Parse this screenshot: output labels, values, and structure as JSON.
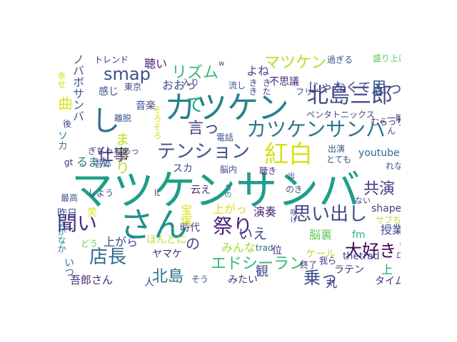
{
  "words": [
    {
      "text": "マツケンサンバ",
      "color": "#1f9e89",
      "vertical": false
    },
    {
      "text": "さん",
      "color": "#21918c",
      "vertical": false
    },
    {
      "text": "カツケン",
      "color": "#26828e",
      "vertical": false
    },
    {
      "text": "北島三郎",
      "color": "#3e4989",
      "vertical": false
    },
    {
      "text": "紅白",
      "color": "#d4e21a",
      "vertical": false
    },
    {
      "text": "し",
      "color": "#2c728e",
      "vertical": false
    },
    {
      "text": "カツケンサンバ",
      "color": "#2a788e",
      "vertical": false
    },
    {
      "text": "テンション",
      "color": "#3b528b",
      "vertical": false
    },
    {
      "text": "思い出し",
      "color": "#3e4a89",
      "vertical": false
    },
    {
      "text": "祭り",
      "color": "#482475",
      "vertical": false
    },
    {
      "text": "聞い",
      "color": "#472c7a",
      "vertical": false
    },
    {
      "text": "店長",
      "color": "#31688e",
      "vertical": false
    },
    {
      "text": "smap",
      "color": "#3b528b",
      "vertical": false
    },
    {
      "text": "マツケン",
      "color": "#b5de2b",
      "vertical": false
    },
    {
      "text": "リズム",
      "color": "#35b779",
      "vertical": false
    },
    {
      "text": "て",
      "color": "#1fa188",
      "vertical": false
    },
    {
      "text": "言っ",
      "color": "#433e85",
      "vertical": false
    },
    {
      "text": "仕事",
      "color": "#482677",
      "vertical": false
    },
    {
      "text": "エドシーラン",
      "color": "#35b779",
      "vertical": false
    },
    {
      "text": "大好き",
      "color": "#440154",
      "vertical": false
    },
    {
      "text": "北島",
      "color": "#2c728e",
      "vertical": false
    },
    {
      "text": "乗っ",
      "color": "#3b528b",
      "vertical": false
    },
    {
      "text": "共演",
      "color": "#443983",
      "vertical": false
    },
    {
      "text": "思っ",
      "color": "#3b528b",
      "vertical": false
    },
    {
      "text": "いえ",
      "color": "#3e4989",
      "vertical": false
    },
    {
      "text": "曲",
      "color": "#d8e219",
      "vertical": true
    },
    {
      "text": "まつり",
      "color": "#c0df25",
      "vertical": true
    },
    {
      "text": "ノバボサンバ",
      "color": "#3b528b",
      "vertical": true
    },
    {
      "text": "じゃなくて",
      "color": "#3e4a89",
      "vertical": false
    },
    {
      "text": "よね",
      "color": "#404688",
      "vertical": false
    },
    {
      "text": "不思議",
      "color": "#482878",
      "vertical": false
    },
    {
      "text": "聴い",
      "color": "#482475",
      "vertical": false
    },
    {
      "text": "上がら",
      "color": "#3e4a89",
      "vertical": false
    },
    {
      "text": "るまた",
      "color": "#2a788e",
      "vertical": false
    },
    {
      "text": "演奏",
      "color": "#482475",
      "vertical": false
    },
    {
      "text": "脳裏",
      "color": "#5ec962",
      "vertical": false
    },
    {
      "text": "上がっ",
      "color": "#d8e219",
      "vertical": false
    },
    {
      "text": "youtube",
      "color": "#31688e",
      "vertical": false
    },
    {
      "text": "shape",
      "color": "#443a83",
      "vertical": false
    },
    {
      "text": "授業",
      "color": "#3e4989",
      "vertical": false
    },
    {
      "text": "みんな",
      "color": "#a0da39",
      "vertical": false
    },
    {
      "text": "観",
      "color": "#3e4a89",
      "vertical": false
    },
    {
      "text": "吾郎さん",
      "color": "#482878",
      "vertical": false
    },
    {
      "text": "みたい",
      "color": "#46327e",
      "vertical": false
    },
    {
      "text": "丸",
      "color": "#433e85",
      "vertical": false
    },
    {
      "text": "タイム",
      "color": "#46327e",
      "vertical": false
    },
    {
      "text": "ラテン",
      "color": "#46327e",
      "vertical": false
    },
    {
      "text": "上",
      "color": "#20a486",
      "vertical": false
    },
    {
      "text": "ロ",
      "color": "#3e4a89",
      "vertical": true
    },
    {
      "text": "い",
      "color": "#3b528b",
      "vertical": false
    },
    {
      "text": "ケール",
      "color": "#b5de2b",
      "vertical": false
    },
    {
      "text": "終了",
      "color": "#472d7b",
      "vertical": false
    },
    {
      "text": "我ら",
      "color": "#472f7d",
      "vertical": false
    },
    {
      "text": "thetrad",
      "color": "#3b528b",
      "vertical": false
    },
    {
      "text": "fm",
      "color": "#35b779",
      "vertical": false
    },
    {
      "text": "trad",
      "color": "#2c728e",
      "vertical": false
    },
    {
      "text": "位",
      "color": "#482475",
      "vertical": false
    },
    {
      "text": "ヤマケ",
      "color": "#482878",
      "vertical": false
    },
    {
      "text": "人",
      "color": "#3e4989",
      "vertical": false
    },
    {
      "text": "そう",
      "color": "#3b528b",
      "vertical": false
    },
    {
      "text": "時代",
      "color": "#414487",
      "vertical": false
    },
    {
      "text": "ほんとに",
      "color": "#c0df25",
      "vertical": false
    },
    {
      "text": "の",
      "color": "#3e4a89",
      "vertical": false
    },
    {
      "text": "笑",
      "color": "#d8e219",
      "vertical": false
    },
    {
      "text": "昨日",
      "color": "#3b528b",
      "vertical": false
    },
    {
      "text": "最高",
      "color": "#3b528b",
      "vertical": false
    },
    {
      "text": "いつ",
      "color": "#2c728e",
      "vertical": true
    },
    {
      "text": "どう",
      "color": "#5ec962",
      "vertical": false
    },
    {
      "text": "なかなか",
      "color": "#287d8e",
      "vertical": true
    },
    {
      "text": "宝塚",
      "color": "#d8e219",
      "vertical": true
    },
    {
      "text": "lt",
      "color": "#453781",
      "vertical": false
    },
    {
      "text": "云え",
      "color": "#482878",
      "vertical": false
    },
    {
      "text": "しよう",
      "color": "#3e4989",
      "vertical": false
    },
    {
      "text": "gt",
      "color": "#482878",
      "vertical": false
    },
    {
      "text": "吾郎",
      "color": "#3b528b",
      "vertical": false
    },
    {
      "text": "ソカ",
      "color": "#2a788e",
      "vertical": true
    },
    {
      "text": "ぎぢゃねあっ",
      "color": "#3e4a89",
      "vertical": false
    },
    {
      "text": "スカ",
      "color": "#3e4a89",
      "vertical": false
    },
    {
      "text": "脳内",
      "color": "#3e4a89",
      "vertical": false
    },
    {
      "text": "聴き",
      "color": "#472d7b",
      "vertical": false
    },
    {
      "text": "電話",
      "color": "#3b528b",
      "vertical": false
    },
    {
      "text": "出演",
      "color": "#3b528b",
      "vertical": false
    },
    {
      "text": "むらっち",
      "color": "#482475",
      "vertical": false
    },
    {
      "text": "とても",
      "color": "#3b528b",
      "vertical": false
    },
    {
      "text": "れな",
      "color": "#3b528b",
      "vertical": false
    },
    {
      "text": "ちの",
      "color": "#2a788e",
      "vertical": true
    },
    {
      "text": "のき",
      "color": "#3e4a89",
      "vertical": false
    },
    {
      "text": "咲け",
      "color": "#3e4a89",
      "vertical": true
    },
    {
      "text": "出",
      "color": "#3b528b",
      "vertical": false
    },
    {
      "text": "ない",
      "color": "#3e4a89",
      "vertical": false
    },
    {
      "text": "サブちゃん",
      "color": "#b5de2b",
      "vertical": false
    },
    {
      "text": "ペンタトニックス",
      "color": "#3e4a89",
      "vertical": false
    },
    {
      "text": "一瞬",
      "color": "#472d7b",
      "vertical": false
    },
    {
      "text": "フリー",
      "color": "#3e4a89",
      "vertical": false
    },
    {
      "text": "きた",
      "color": "#3e4a89",
      "vertical": true
    },
    {
      "text": "流し",
      "color": "#3b528b",
      "vertical": false
    },
    {
      "text": "入り",
      "color": "#3e4a89",
      "vertical": false
    },
    {
      "text": "おおっ",
      "color": "#3b528b",
      "vertical": false
    },
    {
      "text": "東京",
      "color": "#3e4989",
      "vertical": false
    },
    {
      "text": "感じ",
      "color": "#3b528b",
      "vertical": false
    },
    {
      "text": "音楽",
      "color": "#3e4a89",
      "vertical": false
    },
    {
      "text": "離脱",
      "color": "#3b528b",
      "vertical": false
    },
    {
      "text": "後",
      "color": "#3e4a89",
      "vertical": false
    },
    {
      "text": "幸せ",
      "color": "#d8e219",
      "vertical": true
    },
    {
      "text": "トレンド",
      "color": "#472d7b",
      "vertical": false
    },
    {
      "text": "過ぎる",
      "color": "#3b528b",
      "vertical": false
    },
    {
      "text": "盛り上げ",
      "color": "#5ec962",
      "vertical": false
    },
    {
      "text": "w",
      "color": "#3e4a89",
      "vertical": false
    },
    {
      "text": "きき",
      "color": "#3e4a89",
      "vertical": true
    },
    {
      "text": "そろそろ",
      "color": "#d8e219",
      "vertical": true
    },
    {
      "text": "ん",
      "color": "#3e4a89",
      "vertical": false
    }
  ]
}
